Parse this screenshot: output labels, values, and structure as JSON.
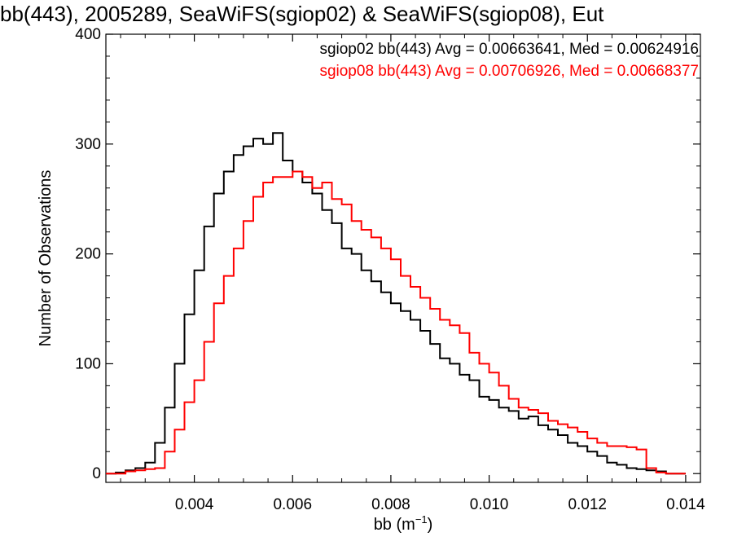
{
  "chart_data": {
    "type": "line",
    "title": "bb(443), 2005289, SeaWiFS(sgiop02) & SeaWiFS(sgiop08), Eut",
    "xlabel": "bb (m",
    "xlabel_sup": "−1",
    "xlabel_suffix": ")",
    "ylabel": "Number of Observations",
    "xlim": [
      0.0022,
      0.0143
    ],
    "ylim": [
      -8,
      400
    ],
    "xticks": [
      0.004,
      0.006,
      0.008,
      0.01,
      0.012,
      0.014
    ],
    "xtick_labels": [
      "0.004",
      "0.006",
      "0.008",
      "0.010",
      "0.012",
      "0.014"
    ],
    "yticks": [
      0,
      100,
      200,
      300,
      400
    ],
    "ytick_labels": [
      "0",
      "100",
      "200",
      "300",
      "400"
    ],
    "grid": false,
    "legend_position": "top-right",
    "series": [
      {
        "name": "sgiop02 bb(443) Avg = 0.00663641, Med = 0.00624916",
        "color": "#000000",
        "x": [
          0.0023,
          0.0025,
          0.0027,
          0.0029,
          0.0031,
          0.0033,
          0.0035,
          0.0037,
          0.0039,
          0.0041,
          0.0043,
          0.0045,
          0.0047,
          0.0049,
          0.0051,
          0.0053,
          0.0055,
          0.0057,
          0.0059,
          0.0061,
          0.0063,
          0.0065,
          0.0067,
          0.0069,
          0.0071,
          0.0073,
          0.0075,
          0.0077,
          0.0079,
          0.0081,
          0.0083,
          0.0085,
          0.0087,
          0.0089,
          0.0091,
          0.0093,
          0.0095,
          0.0097,
          0.0099,
          0.0101,
          0.0103,
          0.0105,
          0.0107,
          0.0109,
          0.0111,
          0.0113,
          0.0115,
          0.0117,
          0.0119,
          0.0121,
          0.0123,
          0.0125,
          0.0127,
          0.0129,
          0.0131,
          0.0133,
          0.0135,
          0.0137,
          0.0139
        ],
        "values": [
          0,
          1,
          3,
          5,
          10,
          28,
          60,
          100,
          145,
          185,
          225,
          255,
          275,
          290,
          298,
          305,
          300,
          310,
          285,
          275,
          265,
          255,
          240,
          228,
          205,
          200,
          185,
          175,
          165,
          155,
          148,
          140,
          130,
          118,
          105,
          100,
          90,
          85,
          70,
          67,
          60,
          57,
          50,
          52,
          44,
          40,
          35,
          28,
          25,
          20,
          16,
          10,
          8,
          5,
          4,
          3,
          2,
          0,
          0
        ]
      },
      {
        "name": "sgiop08 bb(443) Avg = 0.00706926, Med = 0.00668377",
        "color": "#ff0000",
        "x": [
          0.0023,
          0.0025,
          0.0027,
          0.0029,
          0.0031,
          0.0033,
          0.0035,
          0.0037,
          0.0039,
          0.0041,
          0.0043,
          0.0045,
          0.0047,
          0.0049,
          0.0051,
          0.0053,
          0.0055,
          0.0057,
          0.0059,
          0.0061,
          0.0063,
          0.0065,
          0.0067,
          0.0069,
          0.0071,
          0.0073,
          0.0075,
          0.0077,
          0.0079,
          0.0081,
          0.0083,
          0.0085,
          0.0087,
          0.0089,
          0.0091,
          0.0093,
          0.0095,
          0.0097,
          0.0099,
          0.0101,
          0.0103,
          0.0105,
          0.0107,
          0.0109,
          0.0111,
          0.0113,
          0.0115,
          0.0117,
          0.0119,
          0.0121,
          0.0123,
          0.0125,
          0.0127,
          0.0129,
          0.0131,
          0.0133,
          0.0135,
          0.0137,
          0.0139
        ],
        "values": [
          0,
          0,
          2,
          3,
          4,
          5,
          20,
          40,
          65,
          85,
          120,
          155,
          180,
          205,
          230,
          252,
          265,
          270,
          270,
          275,
          270,
          260,
          265,
          250,
          245,
          230,
          222,
          215,
          205,
          195,
          180,
          170,
          160,
          150,
          140,
          135,
          128,
          110,
          100,
          92,
          80,
          68,
          60,
          58,
          55,
          48,
          45,
          42,
          38,
          32,
          28,
          25,
          25,
          24,
          22,
          5,
          1,
          0,
          0
        ]
      }
    ]
  }
}
